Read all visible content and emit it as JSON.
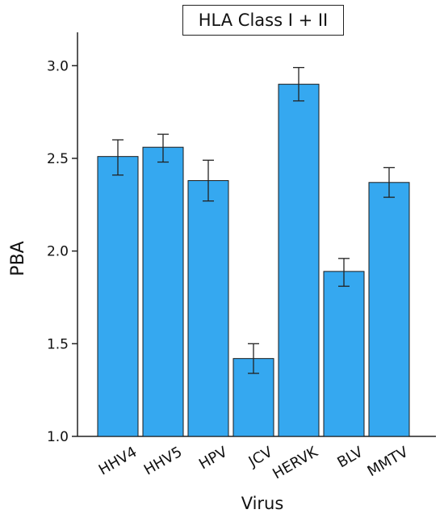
{
  "chart_data": {
    "type": "bar",
    "title": "HLA Class I + II",
    "xlabel": "Virus",
    "ylabel": "PBA",
    "categories": [
      "HHV4",
      "HHV5",
      "HPV",
      "JCV",
      "HERVK",
      "BLV",
      "MMTV"
    ],
    "values": [
      2.51,
      2.56,
      2.38,
      1.42,
      2.9,
      1.89,
      2.37
    ],
    "error_low": [
      2.41,
      2.48,
      2.27,
      1.34,
      2.81,
      1.81,
      2.29
    ],
    "error_high": [
      2.6,
      2.63,
      2.49,
      1.5,
      2.99,
      1.96,
      2.45
    ],
    "ylim": [
      1.0,
      3.18
    ],
    "yticks": [
      "1.0",
      "1.5",
      "2.0",
      "2.5",
      "3.0"
    ],
    "bar_color": "#35a8f0",
    "grid": false,
    "legend": "none"
  }
}
